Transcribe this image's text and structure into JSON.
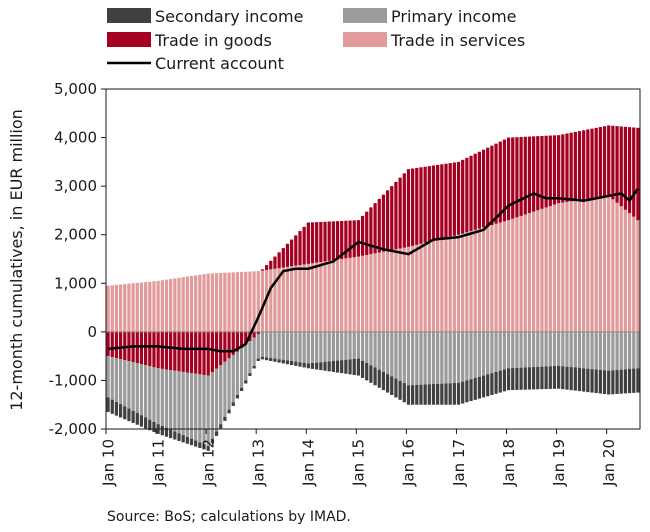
{
  "chart_data": {
    "type": "bar",
    "subtype": "stacked-bar-with-line",
    "frequency": "monthly",
    "ylabel": "12-month cumulatives, in EUR million",
    "ylim": [
      -2000,
      5000
    ],
    "yticks": [
      -2000,
      -1000,
      0,
      1000,
      2000,
      3000,
      4000,
      5000
    ],
    "ytick_labels": [
      "-2,000",
      "-1,000",
      "0",
      "1,000",
      "2,000",
      "3,000",
      "4,000",
      "5,000"
    ],
    "xtick_labels": [
      "Jan 10",
      "Jan 11",
      "Jan 12",
      "Jan 13",
      "Jan 14",
      "Jan 15",
      "Jan 16",
      "Jan 17",
      "Jan 18",
      "Jan 19",
      "Jan 20"
    ],
    "period": {
      "start": "Jan 10",
      "end": "Aug 20"
    },
    "grid": false,
    "legend_position": "top",
    "series_monthly_values_note": "values read approximately from chart at anchor months; intermediate months follow the visible trend",
    "series": [
      {
        "name": "Secondary income",
        "kind": "bar",
        "color": "#404040",
        "points": [
          [
            "Jan 10",
            -300
          ],
          [
            "Jan 11",
            -200
          ],
          [
            "Jan 12",
            -100
          ],
          [
            "Jan 13",
            -50
          ],
          [
            "Jan 14",
            -100
          ],
          [
            "Jan 15",
            -350
          ],
          [
            "Jan 16",
            -400
          ],
          [
            "Jan 17",
            -450
          ],
          [
            "Jan 18",
            -450
          ],
          [
            "Jan 19",
            -470
          ],
          [
            "Jan 20",
            -490
          ],
          [
            "Aug 20",
            -500
          ]
        ]
      },
      {
        "name": "Primary income",
        "kind": "bar",
        "color": "#9b9b9b",
        "points": [
          [
            "Jan 10",
            -850
          ],
          [
            "Jan 11",
            -1150
          ],
          [
            "Jan 12",
            -1450
          ],
          [
            "Jan 13",
            -500
          ],
          [
            "Jan 14",
            -650
          ],
          [
            "Jan 15",
            -550
          ],
          [
            "Jan 16",
            -1100
          ],
          [
            "Jan 17",
            -1050
          ],
          [
            "Jan 18",
            -750
          ],
          [
            "Jan 19",
            -700
          ],
          [
            "Jan 20",
            -800
          ],
          [
            "Aug 20",
            -750
          ]
        ]
      },
      {
        "name": "Trade in goods",
        "kind": "bar",
        "color": "#a50021",
        "points": [
          [
            "Jan 10",
            -500
          ],
          [
            "Jan 11",
            -750
          ],
          [
            "Jan 12",
            -900
          ],
          [
            "Jan 13",
            -50
          ],
          [
            "Jan 14",
            850
          ],
          [
            "Jan 15",
            750
          ],
          [
            "Jan 16",
            1600
          ],
          [
            "Jan 17",
            1500
          ],
          [
            "Jan 18",
            1700
          ],
          [
            "Jan 19",
            1400
          ],
          [
            "Jan 20",
            1450
          ],
          [
            "Aug 20",
            1900
          ]
        ]
      },
      {
        "name": "Trade in services",
        "kind": "bar",
        "color": "#e19b9b",
        "points": [
          [
            "Jan 10",
            950
          ],
          [
            "Jan 11",
            1050
          ],
          [
            "Jan 12",
            1200
          ],
          [
            "Jan 13",
            1250
          ],
          [
            "Jan 14",
            1400
          ],
          [
            "Jan 15",
            1550
          ],
          [
            "Jan 16",
            1750
          ],
          [
            "Jan 17",
            2000
          ],
          [
            "Jan 18",
            2300
          ],
          [
            "Jan 19",
            2650
          ],
          [
            "Jan 20",
            2800
          ],
          [
            "Aug 20",
            2300
          ]
        ]
      },
      {
        "name": "Current account",
        "kind": "line",
        "color": "#000000",
        "points": [
          [
            "Jan 10",
            -350
          ],
          [
            "Jul 10",
            -300
          ],
          [
            "Jan 11",
            -300
          ],
          [
            "Jul 11",
            -350
          ],
          [
            "Jan 12",
            -350
          ],
          [
            "Apr 12",
            -400
          ],
          [
            "Jul 12",
            -400
          ],
          [
            "Oct 12",
            -250
          ],
          [
            "Jan 13",
            300
          ],
          [
            "Apr 13",
            900
          ],
          [
            "Jul 13",
            1250
          ],
          [
            "Oct 13",
            1300
          ],
          [
            "Jan 14",
            1300
          ],
          [
            "Jul 14",
            1450
          ],
          [
            "Jan 15",
            1850
          ],
          [
            "Jul 15",
            1700
          ],
          [
            "Jan 16",
            1600
          ],
          [
            "Jul 16",
            1900
          ],
          [
            "Jan 17",
            1950
          ],
          [
            "Jul 17",
            2100
          ],
          [
            "Jan 18",
            2600
          ],
          [
            "Jul 18",
            2850
          ],
          [
            "Oct 18",
            2750
          ],
          [
            "Jan 19",
            2750
          ],
          [
            "Jul 19",
            2700
          ],
          [
            "Jan 20",
            2800
          ],
          [
            "Apr 20",
            2850
          ],
          [
            "Jun 20",
            2700
          ],
          [
            "Aug 20",
            2950
          ]
        ]
      }
    ],
    "source": "Source: BoS; calculations by IMAD."
  }
}
